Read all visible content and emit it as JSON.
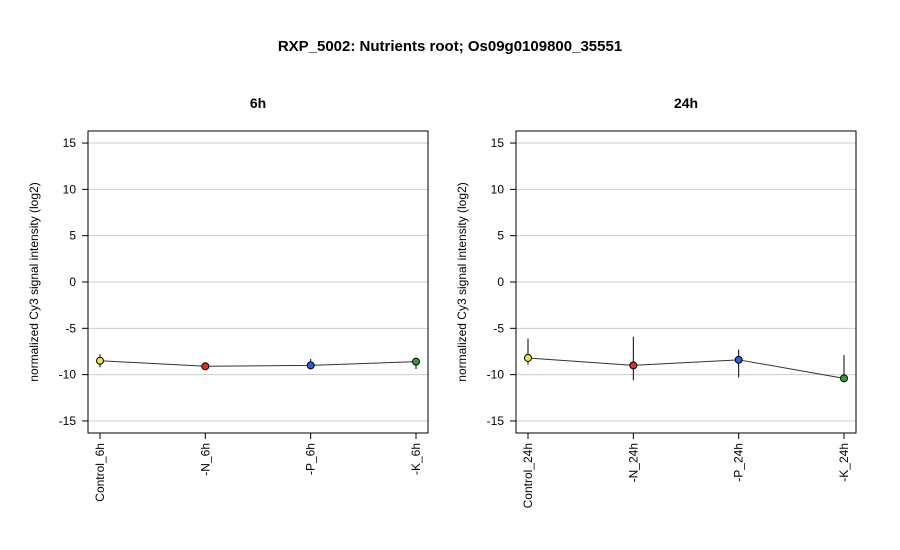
{
  "main_title": "RXP_5002: Nutrients root; Os09g0109800_35551",
  "chart_data": [
    {
      "type": "line",
      "title": "6h",
      "ylabel": "normalized Cy3 signal intensity (log2)",
      "xlabel": "",
      "categories": [
        "Control_6h",
        "-N_6h",
        "-P_6h",
        "-K_6h"
      ],
      "values": [
        -8.5,
        -9.1,
        -9.0,
        -8.6
      ],
      "error_low": [
        -9.2,
        -9.3,
        -9.4,
        -9.4
      ],
      "error_high": [
        -7.8,
        -8.9,
        -8.3,
        -8.4
      ],
      "point_colors": [
        "#f0e442",
        "#e0301e",
        "#2b5fd9",
        "#2fa02a"
      ],
      "yticks": [
        -15,
        -10,
        -5,
        0,
        5,
        10,
        15
      ],
      "ylim": [
        -16.3,
        16.3
      ],
      "grid": true
    },
    {
      "type": "line",
      "title": "24h",
      "ylabel": "normalized Cy3 signal intensity (log2)",
      "xlabel": "",
      "categories": [
        "Control_24h",
        "-N_24h",
        "-P_24h",
        "-K_24h"
      ],
      "values": [
        -8.2,
        -9.0,
        -8.4,
        -10.4
      ],
      "error_low": [
        -8.9,
        -10.6,
        -10.3,
        -10.6
      ],
      "error_high": [
        -6.1,
        -5.9,
        -7.3,
        -7.9
      ],
      "point_colors": [
        "#f0e442",
        "#e0301e",
        "#2b5fd9",
        "#2fa02a"
      ],
      "yticks": [
        -15,
        -10,
        -5,
        0,
        5,
        10,
        15
      ],
      "ylim": [
        -16.3,
        16.3
      ],
      "grid": true
    }
  ]
}
